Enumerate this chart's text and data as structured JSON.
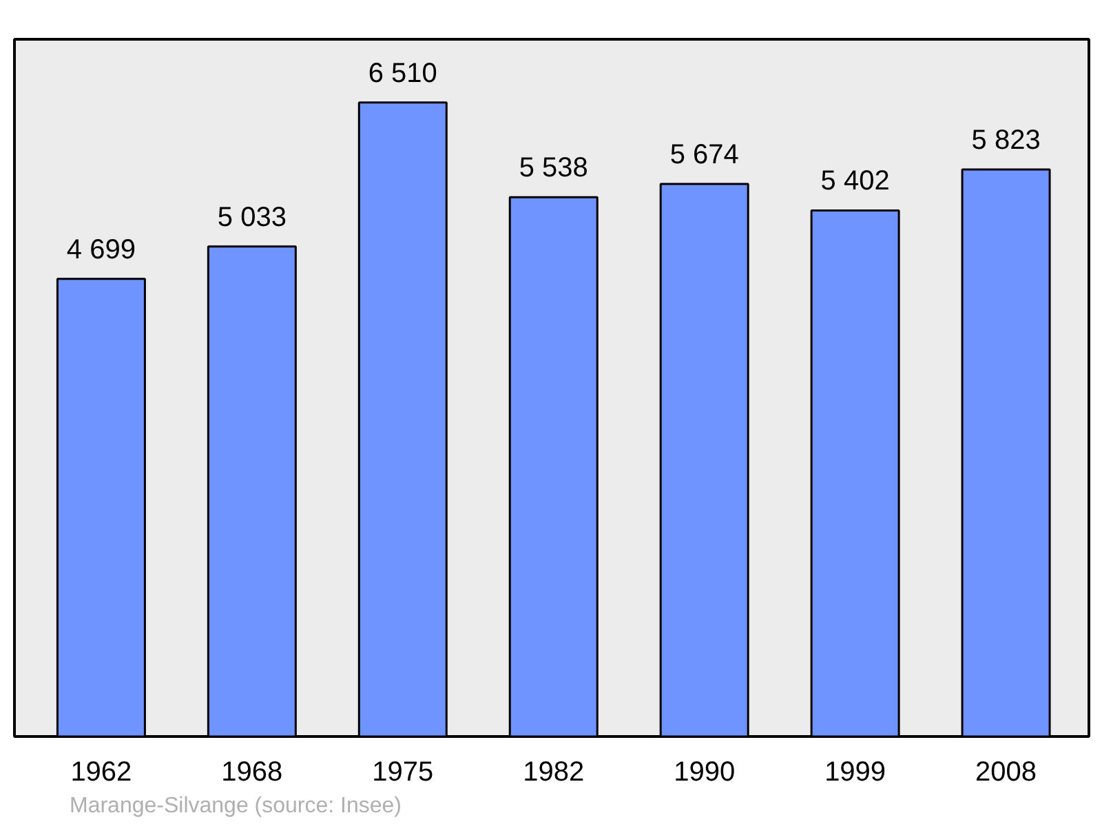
{
  "chart_data": {
    "type": "bar",
    "categories": [
      "1962",
      "1968",
      "1975",
      "1982",
      "1990",
      "1999",
      "2008"
    ],
    "values": [
      4699,
      5033,
      6510,
      5538,
      5674,
      5402,
      5823
    ],
    "color": "#7094ff",
    "ylim": [
      0,
      7160
    ],
    "data_labels": true,
    "tick_labels": "x",
    "annotations": [
      "Marange-Silvange    (source: Insee)"
    ]
  }
}
